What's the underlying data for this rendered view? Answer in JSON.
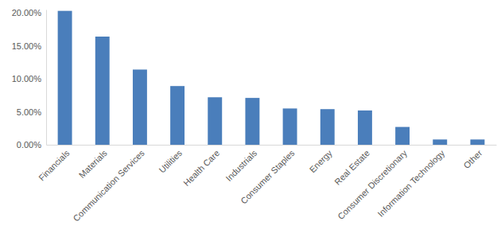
{
  "chart_data": {
    "type": "bar",
    "categories": [
      "Financials",
      "Materials",
      "Communication Services",
      "Utilities",
      "Health Care",
      "Industrials",
      "Consumer Staples",
      "Energy",
      "Real Estate",
      "Consumer Discretionary",
      "Information Technology",
      "Other"
    ],
    "values": [
      20.3,
      16.4,
      11.4,
      8.9,
      7.2,
      7.1,
      5.5,
      5.4,
      5.2,
      2.7,
      0.8,
      0.8
    ],
    "color": "#4a7ebb",
    "ylim": [
      0,
      20.5
    ],
    "yticks": [
      {
        "value": 0,
        "label": "0.00%"
      },
      {
        "value": 5,
        "label": "5.00%"
      },
      {
        "value": 10,
        "label": "10.00%"
      },
      {
        "value": 15,
        "label": "15.00%"
      },
      {
        "value": 20,
        "label": "20.00%"
      }
    ],
    "grid": false
  }
}
